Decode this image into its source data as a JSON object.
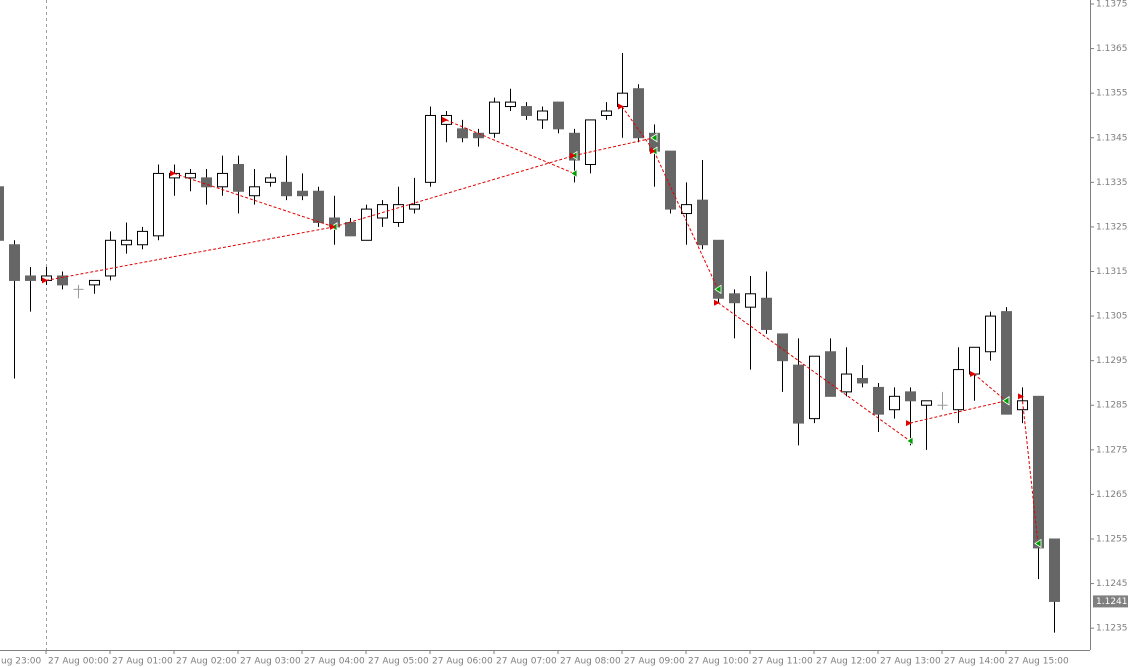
{
  "chart_data": {
    "type": "candlestick",
    "open": [
      1.1334,
      1.1321,
      1.1314,
      1.1313,
      1.1314,
      1.1311,
      1.1312,
      1.1314,
      1.1321,
      1.1321,
      1.1323,
      1.1336,
      1.1336,
      1.1336,
      1.1334,
      1.1339,
      1.1332,
      1.1335,
      1.1335,
      1.1333,
      1.1333,
      1.1327,
      1.1326,
      1.1322,
      1.1327,
      1.1326,
      1.1329,
      1.1335,
      1.1348,
      1.1347,
      1.1346,
      1.1346,
      1.1352,
      1.1352,
      1.1349,
      1.1353,
      1.1346,
      1.1339,
      1.135,
      1.1352,
      1.1356,
      1.1346,
      1.1342,
      1.1328,
      1.1331,
      1.1322,
      1.131,
      1.1307,
      1.1309,
      1.1301,
      1.1294,
      1.1282,
      1.1297,
      1.1288,
      1.1291,
      1.1289,
      1.1284,
      1.1288,
      1.1285,
      1.1285,
      1.1284,
      1.1292,
      1.1297,
      1.1306,
      1.1284,
      1.1287,
      1.1255
    ],
    "high": [
      1.1336,
      1.1322,
      1.1316,
      1.1316,
      1.1315,
      1.1312,
      1.1313,
      1.1324,
      1.1326,
      1.1325,
      1.1339,
      1.1339,
      1.1338,
      1.1338,
      1.1341,
      1.1341,
      1.1338,
      1.1337,
      1.1341,
      1.1337,
      1.1334,
      1.1332,
      1.1327,
      1.133,
      1.1331,
      1.1334,
      1.1336,
      1.1352,
      1.1351,
      1.1349,
      1.1347,
      1.1354,
      1.1356,
      1.1353,
      1.1352,
      1.1353,
      1.1347,
      1.1349,
      1.1353,
      1.1364,
      1.1357,
      1.1348,
      1.1342,
      1.1335,
      1.134,
      1.1322,
      1.1311,
      1.1314,
      1.1315,
      1.1301,
      1.13,
      1.1296,
      1.13,
      1.1298,
      1.1294,
      1.129,
      1.1289,
      1.1289,
      1.1286,
      1.1288,
      1.1298,
      1.1298,
      1.1306,
      1.1307,
      1.1289,
      1.1287,
      1.1255
    ],
    "low": [
      1.132,
      1.1291,
      1.1306,
      1.1312,
      1.1311,
      1.1309,
      1.131,
      1.1313,
      1.1319,
      1.132,
      1.1322,
      1.1332,
      1.1333,
      1.133,
      1.1332,
      1.1328,
      1.133,
      1.1334,
      1.1331,
      1.1331,
      1.1325,
      1.1321,
      1.1323,
      1.1322,
      1.1325,
      1.1325,
      1.1328,
      1.1334,
      1.1344,
      1.1344,
      1.1343,
      1.1345,
      1.1351,
      1.1349,
      1.1347,
      1.1346,
      1.1335,
      1.1337,
      1.1349,
      1.1345,
      1.1344,
      1.1334,
      1.1328,
      1.1321,
      1.132,
      1.1308,
      1.13,
      1.1293,
      1.1301,
      1.1288,
      1.1276,
      1.1281,
      1.1287,
      1.1287,
      1.1289,
      1.1279,
      1.1282,
      1.1276,
      1.1275,
      1.1284,
      1.1281,
      1.1286,
      1.1295,
      1.1283,
      1.1281,
      1.1246,
      1.1234
    ],
    "close": [
      1.1322,
      1.1313,
      1.1313,
      1.1314,
      1.1312,
      1.1311,
      1.1313,
      1.1322,
      1.1322,
      1.1324,
      1.1337,
      1.1337,
      1.1337,
      1.1334,
      1.1337,
      1.1333,
      1.1334,
      1.1336,
      1.1332,
      1.1332,
      1.1326,
      1.1325,
      1.1323,
      1.1329,
      1.133,
      1.133,
      1.133,
      1.135,
      1.135,
      1.1345,
      1.1345,
      1.1353,
      1.1353,
      1.135,
      1.1351,
      1.1347,
      1.134,
      1.1349,
      1.1351,
      1.1355,
      1.1345,
      1.1342,
      1.1329,
      1.133,
      1.1321,
      1.1309,
      1.1308,
      1.131,
      1.1302,
      1.1295,
      1.1281,
      1.1296,
      1.1287,
      1.1292,
      1.129,
      1.1283,
      1.1287,
      1.1286,
      1.1286,
      1.1285,
      1.1293,
      1.1298,
      1.1305,
      1.1283,
      1.1286,
      1.1253,
      1.1241
    ],
    "colors": {
      "bull": "#ffffff",
      "bear": "#666666",
      "doji": "#999999",
      "wick": "#000000",
      "entry": "#e00000",
      "exit": "#00a000",
      "trade_line": "#e00000"
    },
    "trades": [
      {
        "entry_x": 3,
        "entry_price": 1.1313,
        "exit_x": 21,
        "exit_price": 1.1325
      },
      {
        "entry_x": 11,
        "entry_price": 1.1337,
        "exit_x": 21,
        "exit_price": 1.1325
      },
      {
        "entry_x": 21,
        "entry_price": 1.1325,
        "exit_x": 36,
        "exit_price": 1.1341
      },
      {
        "entry_x": 28,
        "entry_price": 1.1349,
        "exit_x": 36,
        "exit_price": 1.1337
      },
      {
        "entry_x": 36,
        "entry_price": 1.1341,
        "exit_x": 41,
        "exit_price": 1.1345
      },
      {
        "entry_x": 39,
        "entry_price": 1.1352,
        "exit_x": 41,
        "exit_price": 1.1342
      },
      {
        "entry_x": 41,
        "entry_price": 1.1342,
        "exit_x": 45,
        "exit_price": 1.1311
      },
      {
        "entry_x": 45,
        "entry_price": 1.1308,
        "exit_x": 57,
        "exit_price": 1.1277
      },
      {
        "entry_x": 57,
        "entry_price": 1.1281,
        "exit_x": 63,
        "exit_price": 1.1286
      },
      {
        "entry_x": 61,
        "entry_price": 1.1292,
        "exit_x": 63,
        "exit_price": 1.1286
      },
      {
        "entry_x": 64,
        "entry_price": 1.1287,
        "exit_x": 65,
        "exit_price": 1.1254
      }
    ],
    "current_price": 1.1241,
    "xlim": [
      0.125,
      68.25
    ],
    "xticks": [
      {
        "value": -1,
        "label": "ug 23:00"
      },
      {
        "value": 3,
        "label": "27 Aug 00:00"
      },
      {
        "value": 7,
        "label": "27 Aug 01:00"
      },
      {
        "value": 11,
        "label": "27 Aug 02:00"
      },
      {
        "value": 15,
        "label": "27 Aug 03:00"
      },
      {
        "value": 19,
        "label": "27 Aug 04:00"
      },
      {
        "value": 23,
        "label": "27 Aug 05:00"
      },
      {
        "value": 27,
        "label": "27 Aug 06:00"
      },
      {
        "value": 31,
        "label": "27 Aug 07:00"
      },
      {
        "value": 35,
        "label": "27 Aug 08:00"
      },
      {
        "value": 39,
        "label": "27 Aug 09:00"
      },
      {
        "value": 43,
        "label": "27 Aug 10:00"
      },
      {
        "value": 47,
        "label": "27 Aug 11:00"
      },
      {
        "value": 51,
        "label": "27 Aug 12:00"
      },
      {
        "value": 55,
        "label": "27 Aug 13:00"
      },
      {
        "value": 59,
        "label": "27 Aug 14:00"
      },
      {
        "value": 63,
        "label": "27 Aug 15:00"
      }
    ],
    "ylim": [
      1.12301,
      1.13759
    ],
    "yticks": [
      1.1375,
      1.1365,
      1.1355,
      1.1345,
      1.1335,
      1.1325,
      1.1315,
      1.1305,
      1.1295,
      1.1285,
      1.1275,
      1.1265,
      1.1255,
      1.1245,
      1.1235
    ]
  }
}
